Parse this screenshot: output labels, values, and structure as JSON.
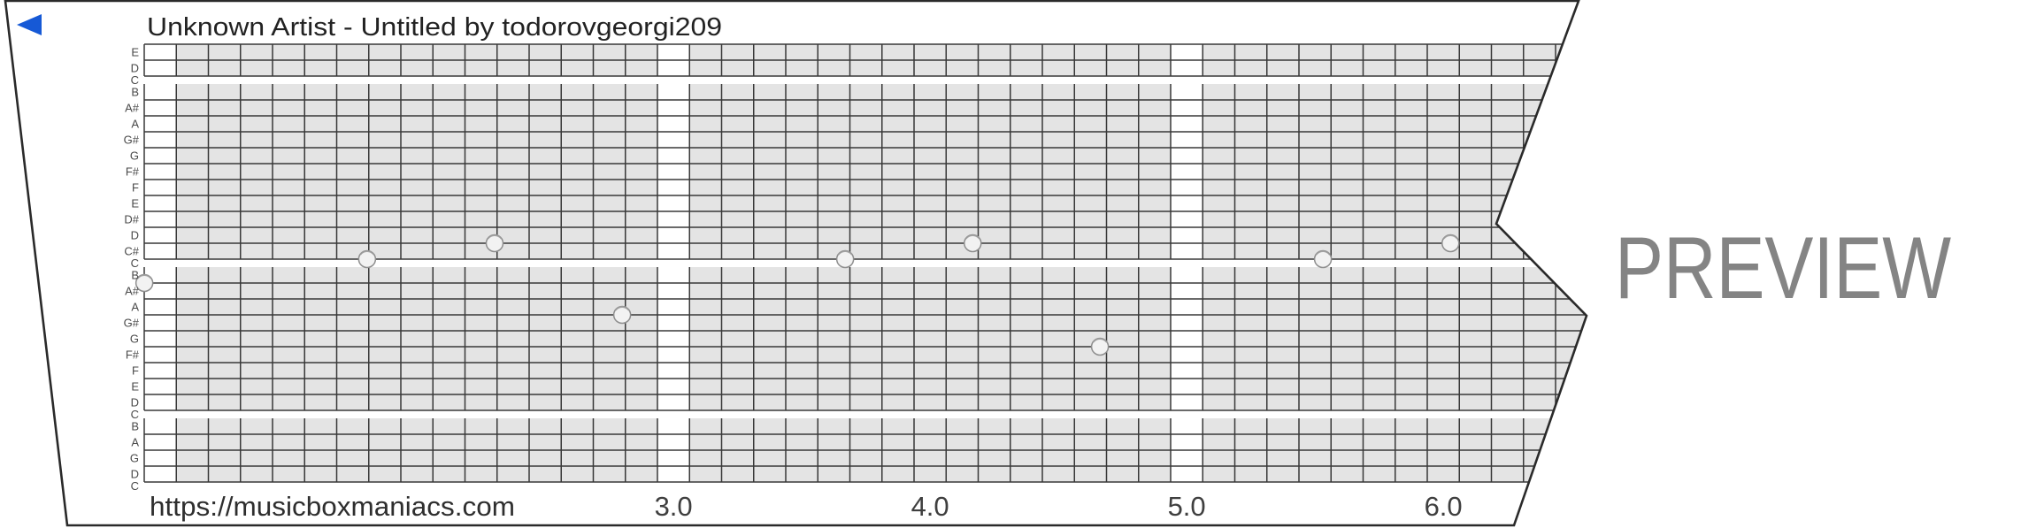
{
  "header": {
    "title": "Unknown Artist - Untitled by todorovgeorgi209"
  },
  "footer": {
    "url": "https://musicboxmaniacs.com"
  },
  "watermark": {
    "text": "PREVIEW"
  },
  "play_button": {
    "direction": "left"
  },
  "colors": {
    "bg": "#ffffff",
    "paper": "#ffffff",
    "outline": "#2a2a2a",
    "ink": "#222222",
    "url": "#2e2e2e",
    "watermark": "#848484",
    "play": "#1659d6",
    "beat": "#3f3f3f",
    "label": "#4a4a4a",
    "gridfill": "#e4e4e4",
    "gridline": "#383838",
    "dotfill": "#f2f2f2",
    "dotstroke": "#8e8e8e",
    "dotrim": "#9b9b9b"
  },
  "chart_data": {
    "type": "scatter",
    "title": "Unknown Artist - Untitled by todorovgeorgi209",
    "description": "30-note music box strip preview; rows are pitches (top to bottom), x axis is time in beats; punched notes shown as circles; C rows are thin white separator bands",
    "pitch_rows": [
      {
        "pitch": "E6",
        "label": "E"
      },
      {
        "pitch": "D6",
        "label": "D"
      },
      {
        "pitch": "C6",
        "label": "C"
      },
      {
        "pitch": "B5",
        "label": "B"
      },
      {
        "pitch": "A#5",
        "label": "A#"
      },
      {
        "pitch": "A5",
        "label": "A"
      },
      {
        "pitch": "G#5",
        "label": "G#"
      },
      {
        "pitch": "G5",
        "label": "G"
      },
      {
        "pitch": "F#5",
        "label": "F#"
      },
      {
        "pitch": "F5",
        "label": "F"
      },
      {
        "pitch": "E5",
        "label": "E"
      },
      {
        "pitch": "D#5",
        "label": "D#"
      },
      {
        "pitch": "D5",
        "label": "D"
      },
      {
        "pitch": "C#5",
        "label": "C#"
      },
      {
        "pitch": "C5",
        "label": "C"
      },
      {
        "pitch": "B4",
        "label": "B"
      },
      {
        "pitch": "A#4",
        "label": "A#"
      },
      {
        "pitch": "A4",
        "label": "A"
      },
      {
        "pitch": "G#4",
        "label": "G#"
      },
      {
        "pitch": "G4",
        "label": "G"
      },
      {
        "pitch": "F#4",
        "label": "F#"
      },
      {
        "pitch": "F4",
        "label": "F"
      },
      {
        "pitch": "E4",
        "label": "E"
      },
      {
        "pitch": "D4",
        "label": "D"
      },
      {
        "pitch": "C4",
        "label": "C"
      },
      {
        "pitch": "B3",
        "label": "B"
      },
      {
        "pitch": "A3",
        "label": "A"
      },
      {
        "pitch": "G3",
        "label": "G"
      },
      {
        "pitch": "D3",
        "label": "D"
      },
      {
        "pitch": "C3",
        "label": "C"
      }
    ],
    "beat_ticks": [
      {
        "label": "3.0",
        "beat": 3
      },
      {
        "label": "4.0",
        "beat": 4
      },
      {
        "label": "5.0",
        "beat": 5
      },
      {
        "label": "6.0",
        "beat": 6
      }
    ],
    "white_column_beats": [
      1,
      3,
      5
    ],
    "notes": [
      {
        "beat": 0.938,
        "pitch": "A#4"
      },
      {
        "beat": 1.806,
        "pitch": "C5"
      },
      {
        "beat": 2.303,
        "pitch": "C#5"
      },
      {
        "beat": 2.8,
        "pitch": "G#4"
      },
      {
        "beat": 3.669,
        "pitch": "C5"
      },
      {
        "beat": 4.166,
        "pitch": "C#5"
      },
      {
        "beat": 4.662,
        "pitch": "F#4"
      },
      {
        "beat": 5.531,
        "pitch": "C5"
      },
      {
        "beat": 6.028,
        "pitch": "C#5"
      }
    ],
    "x_axis": {
      "first_labeled_beat": 3,
      "last_labeled_beat": 6,
      "grid_columns_per_beat": 8
    },
    "legend": "none"
  }
}
